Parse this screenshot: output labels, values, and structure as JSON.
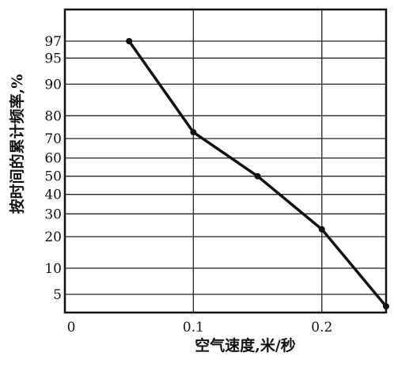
{
  "chart_data": {
    "type": "line",
    "xlabel": "空气速度,米/秒",
    "ylabel": "按时间的累计频率,%",
    "x_ticks": [
      "0",
      "0.1",
      "0.2"
    ],
    "x_tick_values": [
      0,
      0.1,
      0.2
    ],
    "y_ticks": [
      "5",
      "10",
      "20",
      "30",
      "40",
      "50",
      "60",
      "70",
      "80",
      "90",
      "95",
      "97"
    ],
    "y_tick_values": [
      5,
      10,
      20,
      30,
      40,
      50,
      60,
      70,
      80,
      90,
      95,
      97
    ],
    "y_scale": "probability",
    "xlim": [
      0,
      0.25
    ],
    "grid": true,
    "series": [
      {
        "x": [
          0.05,
          0.1,
          0.15,
          0.2,
          0.25
        ],
        "y": [
          97,
          73,
          50,
          23,
          3.5
        ]
      }
    ],
    "colors": {
      "line": "#111111",
      "grid": "#222222",
      "background": "#ffffff"
    }
  }
}
